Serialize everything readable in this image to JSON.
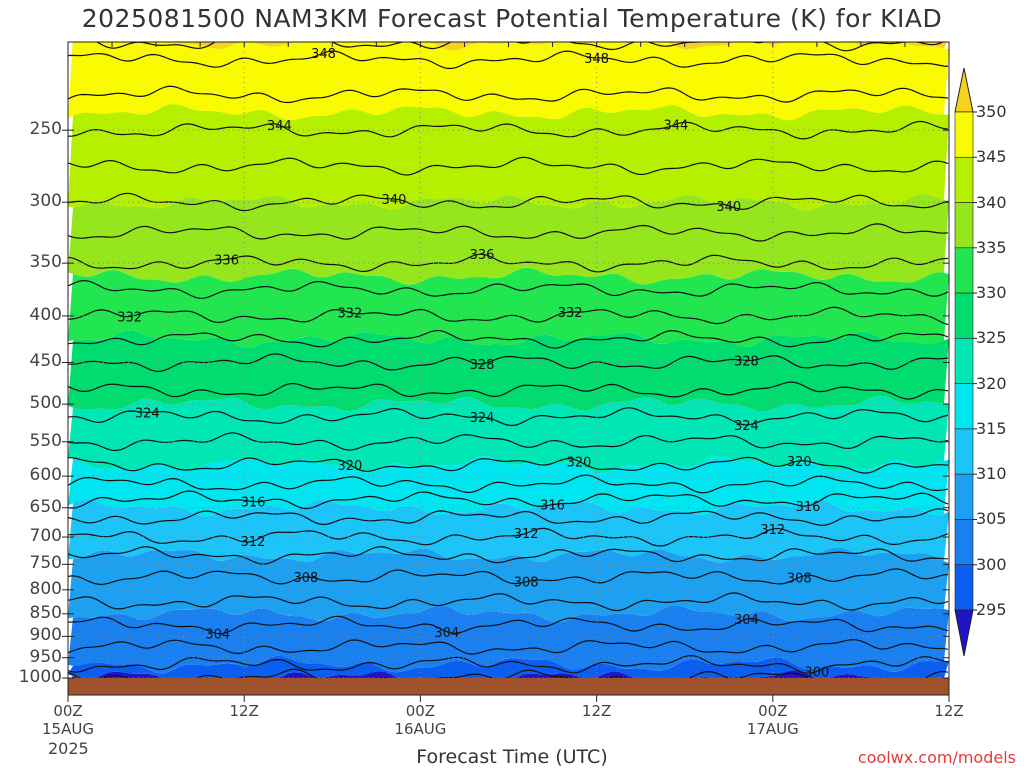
{
  "title": "2025081500 NAM3KM Forecast Potential Temperature (K) for KIAD",
  "x_title": "Forecast Time (UTC)",
  "credit": "coolwx.com/models",
  "year": "2025",
  "colors": {
    "ground": "#a0522d",
    "grid": "#888888",
    "contour": "#111111"
  },
  "chart_data": {
    "type": "heatmap",
    "title": "2025081500 NAM3KM Forecast Potential Temperature (K) for KIAD",
    "xlabel": "Forecast Time (UTC)",
    "ylabel": "",
    "x_hours": [
      0,
      60
    ],
    "x_ticks": [
      {
        "hour": 0,
        "label": "00Z",
        "date": "15AUG"
      },
      {
        "hour": 12,
        "label": "12Z",
        "date": ""
      },
      {
        "hour": 24,
        "label": "00Z",
        "date": "16AUG"
      },
      {
        "hour": 36,
        "label": "12Z",
        "date": ""
      },
      {
        "hour": 48,
        "label": "00Z",
        "date": "17AUG"
      },
      {
        "hour": 60,
        "label": "12Z",
        "date": ""
      }
    ],
    "y_axis": "pressure (hPa), log scale, inverted",
    "y_ticks": [
      250,
      300,
      350,
      400,
      450,
      500,
      550,
      600,
      650,
      700,
      750,
      800,
      850,
      900,
      950,
      1000
    ],
    "colorbar": {
      "levels": [
        295,
        300,
        305,
        310,
        315,
        320,
        325,
        330,
        335,
        340,
        345,
        350
      ],
      "labels": [
        "350",
        "345",
        "340",
        "335",
        "330",
        "325",
        "320",
        "315",
        "310",
        "305",
        "300",
        "295"
      ],
      "colors": [
        "#1e14c8",
        "#0c5ef0",
        "#1a80f0",
        "#1ea0f0",
        "#1cc4f8",
        "#00e6f0",
        "#00e6b4",
        "#00dc6e",
        "#22e650",
        "#96e61e",
        "#b4f000",
        "#fafa00",
        "#f5d21e"
      ]
    },
    "contour_labels": [
      "348",
      "348",
      "344",
      "344",
      "340",
      "340",
      "336",
      "336",
      "332",
      "332",
      "332",
      "328",
      "328",
      "324",
      "324",
      "324",
      "320",
      "320",
      "320",
      "316",
      "316",
      "316",
      "312",
      "312",
      "312",
      "308",
      "308",
      "308",
      "304",
      "304",
      "304",
      "300"
    ],
    "profile_mean": [
      {
        "p": 1000,
        "theta": 298
      },
      {
        "p": 950,
        "theta": 301
      },
      {
        "p": 900,
        "theta": 303
      },
      {
        "p": 850,
        "theta": 305
      },
      {
        "p": 800,
        "theta": 307
      },
      {
        "p": 750,
        "theta": 309
      },
      {
        "p": 700,
        "theta": 312
      },
      {
        "p": 650,
        "theta": 315
      },
      {
        "p": 600,
        "theta": 319
      },
      {
        "p": 550,
        "theta": 322
      },
      {
        "p": 500,
        "theta": 325
      },
      {
        "p": 450,
        "theta": 328
      },
      {
        "p": 400,
        "theta": 332
      },
      {
        "p": 350,
        "theta": 336
      },
      {
        "p": 300,
        "theta": 340
      },
      {
        "p": 250,
        "theta": 344
      },
      {
        "p": 200,
        "theta": 349
      }
    ]
  }
}
